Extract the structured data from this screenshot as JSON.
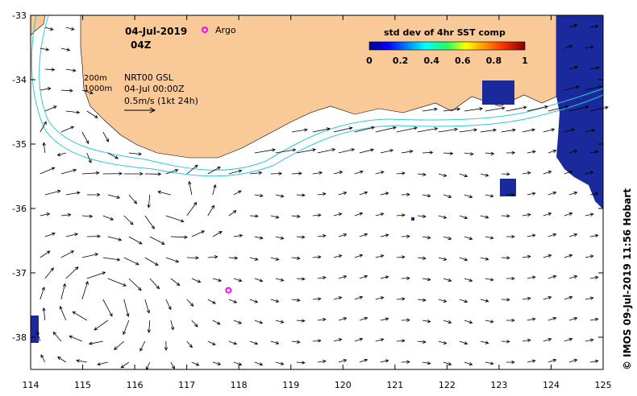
{
  "title": {
    "date": "04-Jul-2019",
    "hour": "04Z"
  },
  "legend_argo": "Argo",
  "info": {
    "isobath_200": "200m",
    "isobath_1000": "1000m",
    "product": "NRT00 GSL",
    "valid": "04-Jul 00:00Z",
    "scale": "0.5m/s (1kt 24h)"
  },
  "colorbar": {
    "title": "std dev of 4hr SST comp",
    "ticks": [
      "0",
      "0.2",
      "0.4",
      "0.6",
      "0.8",
      "1"
    ]
  },
  "credit": "© IMOS 09-Jul-2019 11:56 Hobart",
  "colors": {
    "land": "#f9c998",
    "isobath": "#2ec8d8",
    "argo": "#ff00ff",
    "sst_low": "#1a2a9c"
  },
  "axes": {
    "x_ticks": [
      "114",
      "115",
      "116",
      "117",
      "118",
      "119",
      "120",
      "121",
      "122",
      "123",
      "124",
      "125"
    ],
    "y_ticks": [
      "-33",
      "-34",
      "-35",
      "-36",
      "-37",
      "-38"
    ],
    "lon_range": [
      114,
      125
    ],
    "lat_range": [
      -38.5,
      -33
    ]
  },
  "argo_float": {
    "lon": 117.8,
    "lat": -37.27
  }
}
